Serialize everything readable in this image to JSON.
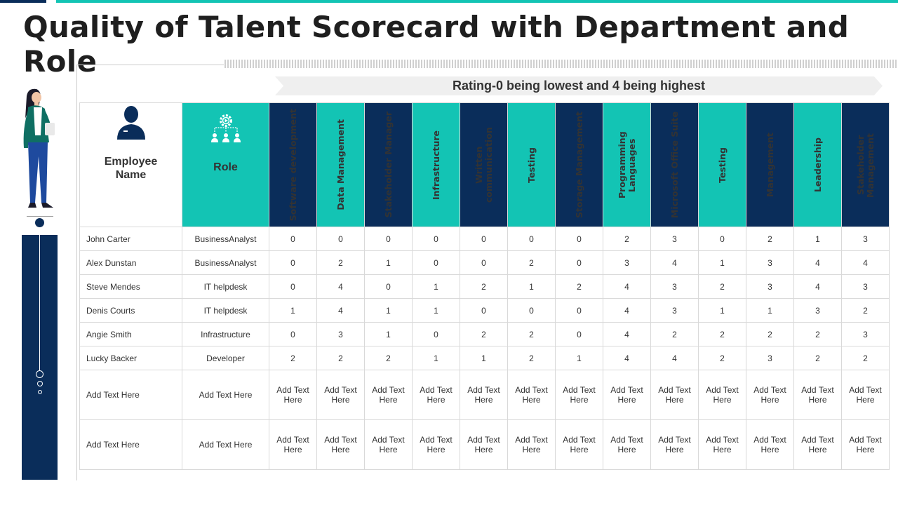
{
  "title": "Quality of Talent Scorecard with Department and Role",
  "rating_note": "Rating-0 being lowest and 4 being highest",
  "header": {
    "employee_label": "Employee Name",
    "role_label": "Role",
    "skills": [
      {
        "label": "Software development",
        "color": "navy"
      },
      {
        "label": "Data Management",
        "color": "teal"
      },
      {
        "label": "Stakeholder Manager",
        "color": "navy"
      },
      {
        "label": "Infrastructure",
        "color": "teal"
      },
      {
        "label": "Written communication",
        "color": "navy"
      },
      {
        "label": "Testing",
        "color": "teal"
      },
      {
        "label": "Storage Management",
        "color": "navy"
      },
      {
        "label": "Programming Languages",
        "color": "teal"
      },
      {
        "label": "Microsoft Office Suite",
        "color": "navy"
      },
      {
        "label": "Testing",
        "color": "teal"
      },
      {
        "label": "Management",
        "color": "navy"
      },
      {
        "label": "Leadership",
        "color": "teal"
      },
      {
        "label": "Stakeholder Management",
        "color": "navy"
      }
    ]
  },
  "rows": [
    {
      "name": "John Carter",
      "role": "BusinessAnalyst",
      "scores": [
        "0",
        "0",
        "0",
        "0",
        "0",
        "0",
        "0",
        "2",
        "3",
        "0",
        "2",
        "1",
        "3"
      ]
    },
    {
      "name": "Alex Dunstan",
      "role": "BusinessAnalyst",
      "scores": [
        "0",
        "2",
        "1",
        "0",
        "0",
        "2",
        "0",
        "3",
        "4",
        "1",
        "3",
        "4",
        "4"
      ]
    },
    {
      "name": "Steve Mendes",
      "role": "IT helpdesk",
      "scores": [
        "0",
        "4",
        "0",
        "1",
        "2",
        "1",
        "2",
        "4",
        "3",
        "2",
        "3",
        "4",
        "3"
      ]
    },
    {
      "name": "Denis Courts",
      "role": "IT helpdesk",
      "scores": [
        "1",
        "4",
        "1",
        "1",
        "0",
        "0",
        "0",
        "4",
        "3",
        "1",
        "1",
        "3",
        "2"
      ]
    },
    {
      "name": "Angie Smith",
      "role": "Infrastructure",
      "scores": [
        "0",
        "3",
        "1",
        "0",
        "2",
        "2",
        "0",
        "4",
        "2",
        "2",
        "2",
        "2",
        "3"
      ]
    },
    {
      "name": "Lucky Backer",
      "role": "Developer",
      "scores": [
        "2",
        "2",
        "2",
        "1",
        "1",
        "2",
        "1",
        "4",
        "4",
        "2",
        "3",
        "2",
        "2"
      ]
    },
    {
      "name": "Add Text Here",
      "role": "Add Text Here",
      "scores": [
        "Add Text Here",
        "Add Text Here",
        "Add Text Here",
        "Add Text Here",
        "Add Text Here",
        "Add Text Here",
        "Add Text Here",
        "Add Text Here",
        "Add Text Here",
        "Add Text Here",
        "Add Text Here",
        "Add Text Here",
        "Add Text Here"
      ]
    },
    {
      "name": "Add Text Here",
      "role": "Add Text Here",
      "scores": [
        "Add Text Here",
        "Add Text Here",
        "Add Text Here",
        "Add Text Here",
        "Add Text Here",
        "Add Text Here",
        "Add Text Here",
        "Add Text Here",
        "Add Text Here",
        "Add Text Here",
        "Add Text Here",
        "Add Text Here",
        "Add Text Here"
      ]
    }
  ],
  "colors": {
    "navy": "#0a2d5a",
    "teal": "#13c4b4"
  },
  "icons": {
    "employee": "person-icon",
    "role": "team-gear-icon"
  }
}
